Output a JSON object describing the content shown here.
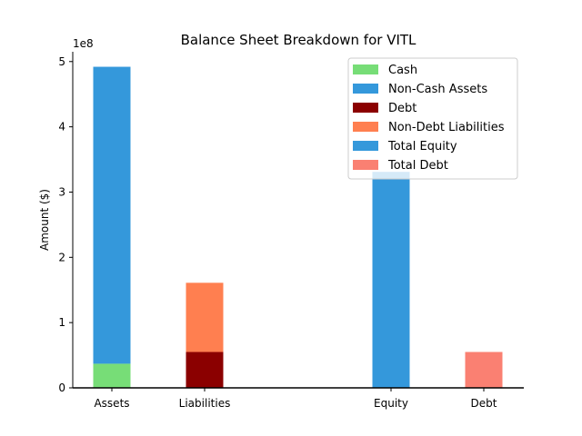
{
  "chart_data": {
    "type": "bar",
    "title": "Balance Sheet Breakdown for VITL",
    "xlabel": "",
    "ylabel": "Amount ($)",
    "y_scale_note": "1e8",
    "ylim": [
      0,
      515000000
    ],
    "yticks": [
      0,
      1,
      2,
      3,
      4,
      5
    ],
    "grid": false,
    "legend_position": "top-right",
    "categories": [
      "Assets",
      "Liabilities",
      "Equity",
      "Debt"
    ],
    "series": [
      {
        "name": "Cash",
        "color": "#77dd77",
        "category": "Assets",
        "base": 0,
        "value": 37000000
      },
      {
        "name": "Non-Cash Assets",
        "color": "#3498db",
        "category": "Assets",
        "base": 37000000,
        "value": 455000000
      },
      {
        "name": "Debt",
        "color": "#8b0000",
        "category": "Liabilities",
        "base": 0,
        "value": 55000000
      },
      {
        "name": "Non-Debt Liabilities",
        "color": "#ff7f50",
        "category": "Liabilities",
        "base": 55000000,
        "value": 106000000
      },
      {
        "name": "Total Equity",
        "color": "#3498db",
        "category": "Equity",
        "base": 0,
        "value": 331000000
      },
      {
        "name": "Total Debt",
        "color": "#fa8072",
        "category": "Debt",
        "base": 0,
        "value": 55000000
      }
    ]
  }
}
